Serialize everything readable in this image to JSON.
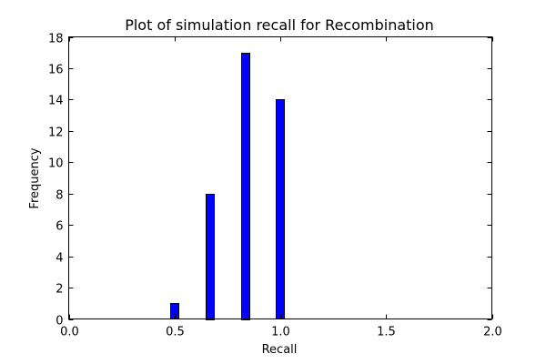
{
  "chart_data": {
    "type": "bar",
    "title": "Plot of simulation recall for Recombination",
    "xlabel": "Recall",
    "ylabel": "Frequency",
    "xlim": [
      0.0,
      2.0
    ],
    "ylim": [
      0,
      18
    ],
    "grid": false,
    "x": [
      0.5,
      0.6667,
      0.8333,
      1.0
    ],
    "values": [
      1,
      8,
      17,
      14
    ],
    "bar_width": 0.04,
    "bar_color": "#0000ff",
    "x_ticks": [
      0.0,
      0.5,
      1.0,
      1.5,
      2.0
    ],
    "x_tick_labels": [
      "0.0",
      "0.5",
      "1.0",
      "1.5",
      "2.0"
    ],
    "y_ticks": [
      0,
      2,
      4,
      6,
      8,
      10,
      12,
      14,
      16,
      18
    ],
    "y_tick_labels": [
      "0",
      "2",
      "4",
      "6",
      "8",
      "10",
      "12",
      "14",
      "16",
      "18"
    ]
  }
}
